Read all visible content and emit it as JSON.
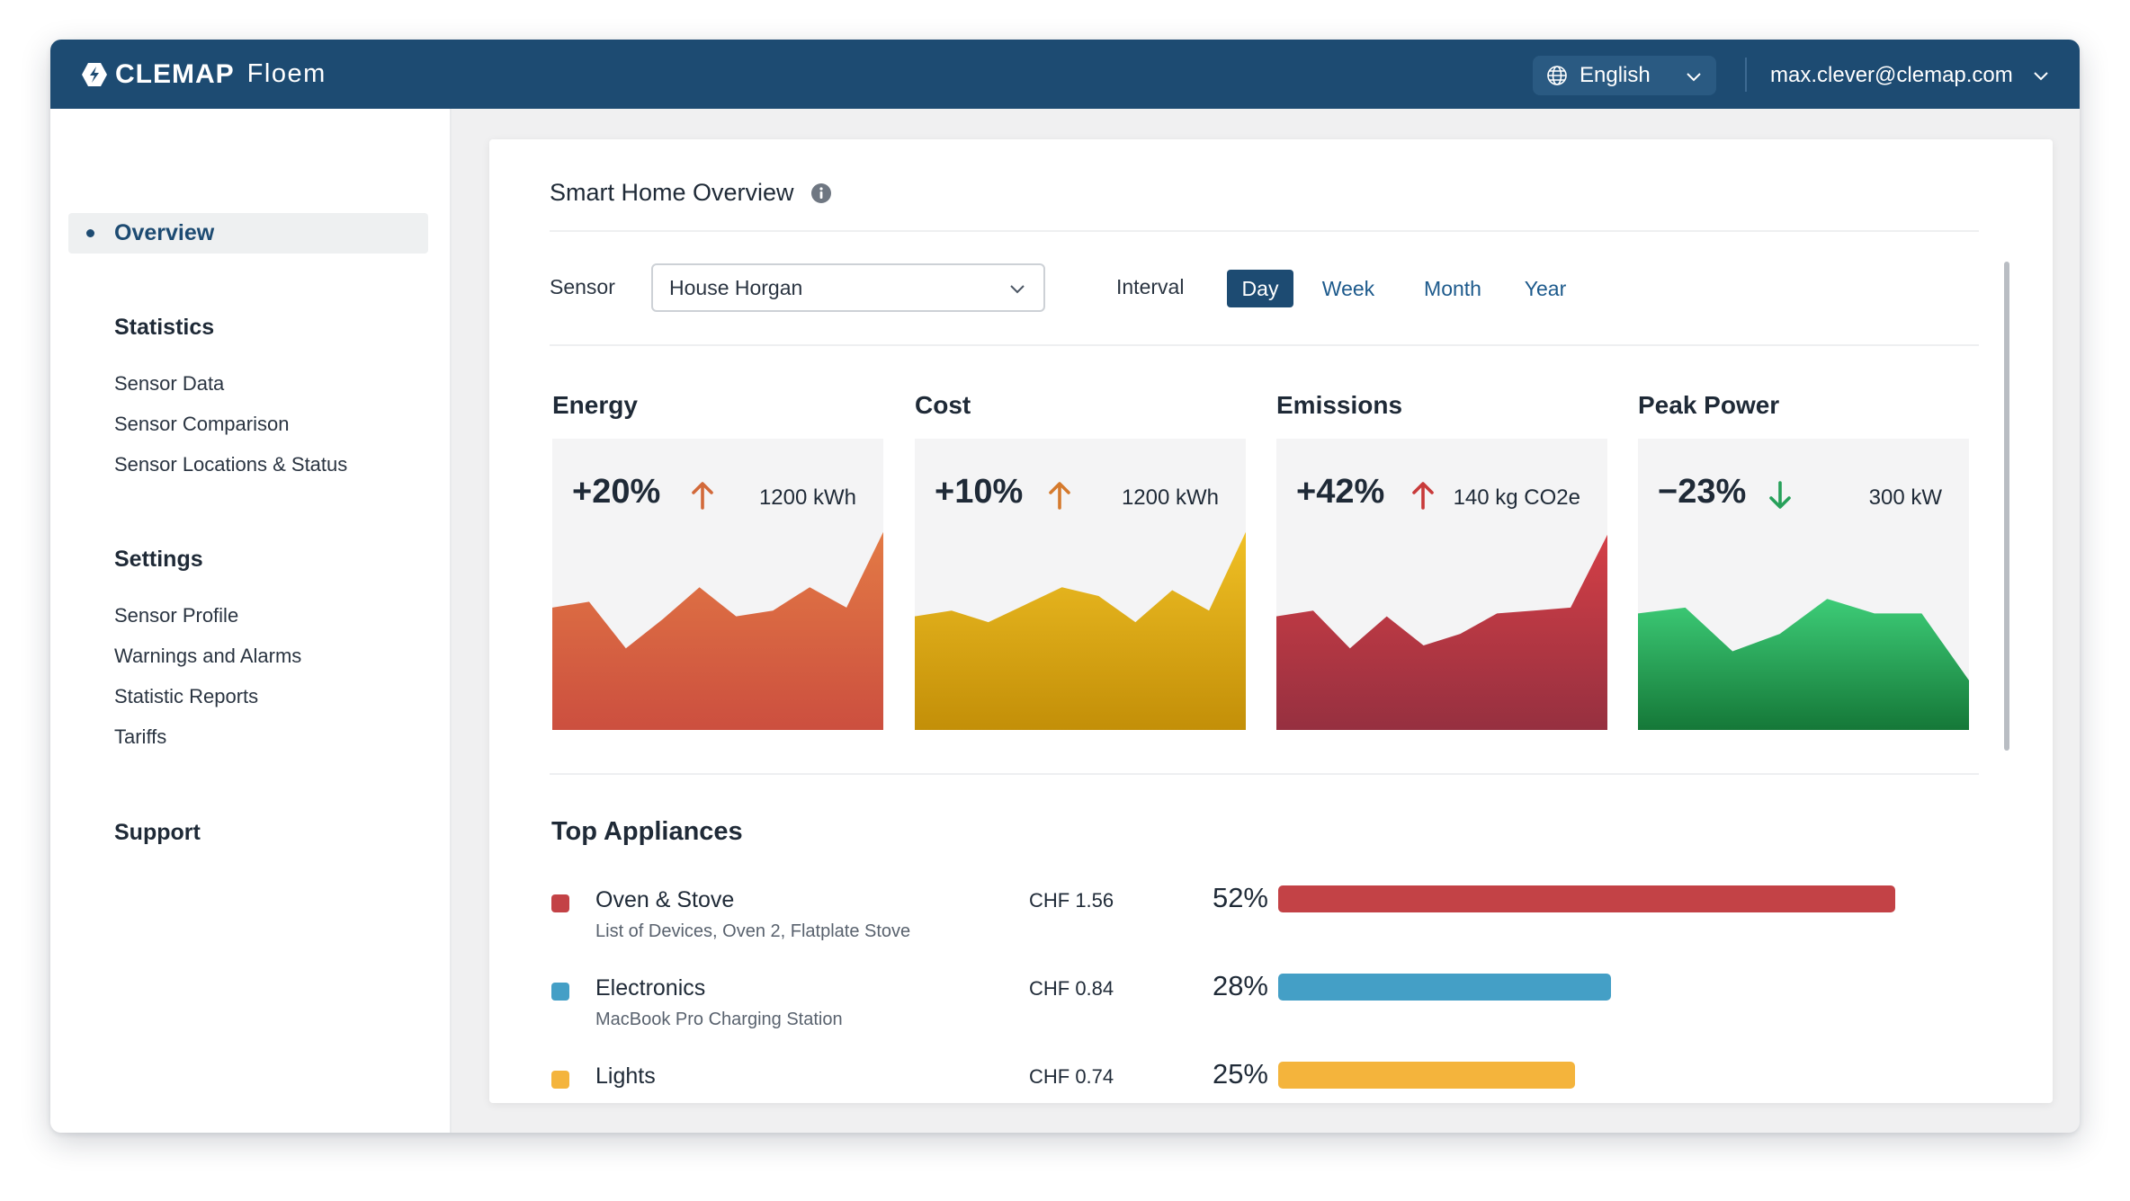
{
  "header": {
    "brand": "CLEMAP",
    "product": "Floem",
    "language": "English",
    "user": "max.clever@clemap.com"
  },
  "sidebar": {
    "active": "Overview",
    "sections": [
      {
        "title": "Statistics",
        "items": [
          "Sensor Data",
          "Sensor Comparison",
          "Sensor Locations & Status"
        ]
      },
      {
        "title": "Settings",
        "items": [
          "Sensor Profile",
          "Warnings and Alarms",
          "Statistic Reports",
          "Tariffs"
        ]
      },
      {
        "title": "Support",
        "items": []
      }
    ]
  },
  "main": {
    "title": "Smart Home Overview",
    "sensor_label": "Sensor",
    "sensor_value": "House Horgan",
    "interval_label": "Interval",
    "intervals": [
      "Day",
      "Week",
      "Month",
      "Year"
    ],
    "active_interval": "Day",
    "kpis": [
      {
        "title": "Energy",
        "change": "+20%",
        "direction": "up",
        "amount": "1200 kWh",
        "colors": [
          "#e37a45",
          "#cc4f3f"
        ],
        "arrow_color": "#d2693a",
        "trend": [
          0.42,
          0.44,
          0.28,
          0.38,
          0.49,
          0.39,
          0.41,
          0.49,
          0.42,
          0.68
        ]
      },
      {
        "title": "Cost",
        "change": "+10%",
        "direction": "up",
        "amount": "1200 kWh",
        "colors": [
          "#f0c025",
          "#c38f08"
        ],
        "arrow_color": "#d57a2d",
        "trend": [
          0.39,
          0.41,
          0.37,
          0.43,
          0.49,
          0.46,
          0.37,
          0.48,
          0.41,
          0.68
        ]
      },
      {
        "title": "Emissions",
        "change": "+42%",
        "direction": "up",
        "amount": "140 kg CO2e",
        "colors": [
          "#d43f46",
          "#963040"
        ],
        "arrow_color": "#c83a3a",
        "trend": [
          0.39,
          0.41,
          0.28,
          0.39,
          0.29,
          0.33,
          0.4,
          0.41,
          0.42,
          0.67
        ]
      },
      {
        "title": "Peak Power",
        "change": "−23%",
        "direction": "down",
        "amount": "300 kW",
        "colors": [
          "#3dcc77",
          "#157838"
        ],
        "arrow_color": "#27a05a",
        "trend": [
          0.4,
          0.42,
          0.27,
          0.33,
          0.45,
          0.4,
          0.4,
          0.17
        ]
      }
    ],
    "top_appliances_title": "Top Appliances",
    "appliances": [
      {
        "name": "Oven & Stove",
        "devices": "List of Devices, Oven 2, Flatplate Stove",
        "price": "CHF 1.56",
        "share": "52%",
        "share_value": 0.52,
        "color": "#c34246"
      },
      {
        "name": "Electronics",
        "devices": "MacBook Pro Charging Station",
        "price": "CHF 0.84",
        "share": "28%",
        "share_value": 0.28,
        "color": "#449fc6"
      },
      {
        "name": "Lights",
        "devices": "",
        "price": "CHF 0.74",
        "share": "25%",
        "share_value": 0.25,
        "color": "#f4b43c"
      }
    ]
  }
}
